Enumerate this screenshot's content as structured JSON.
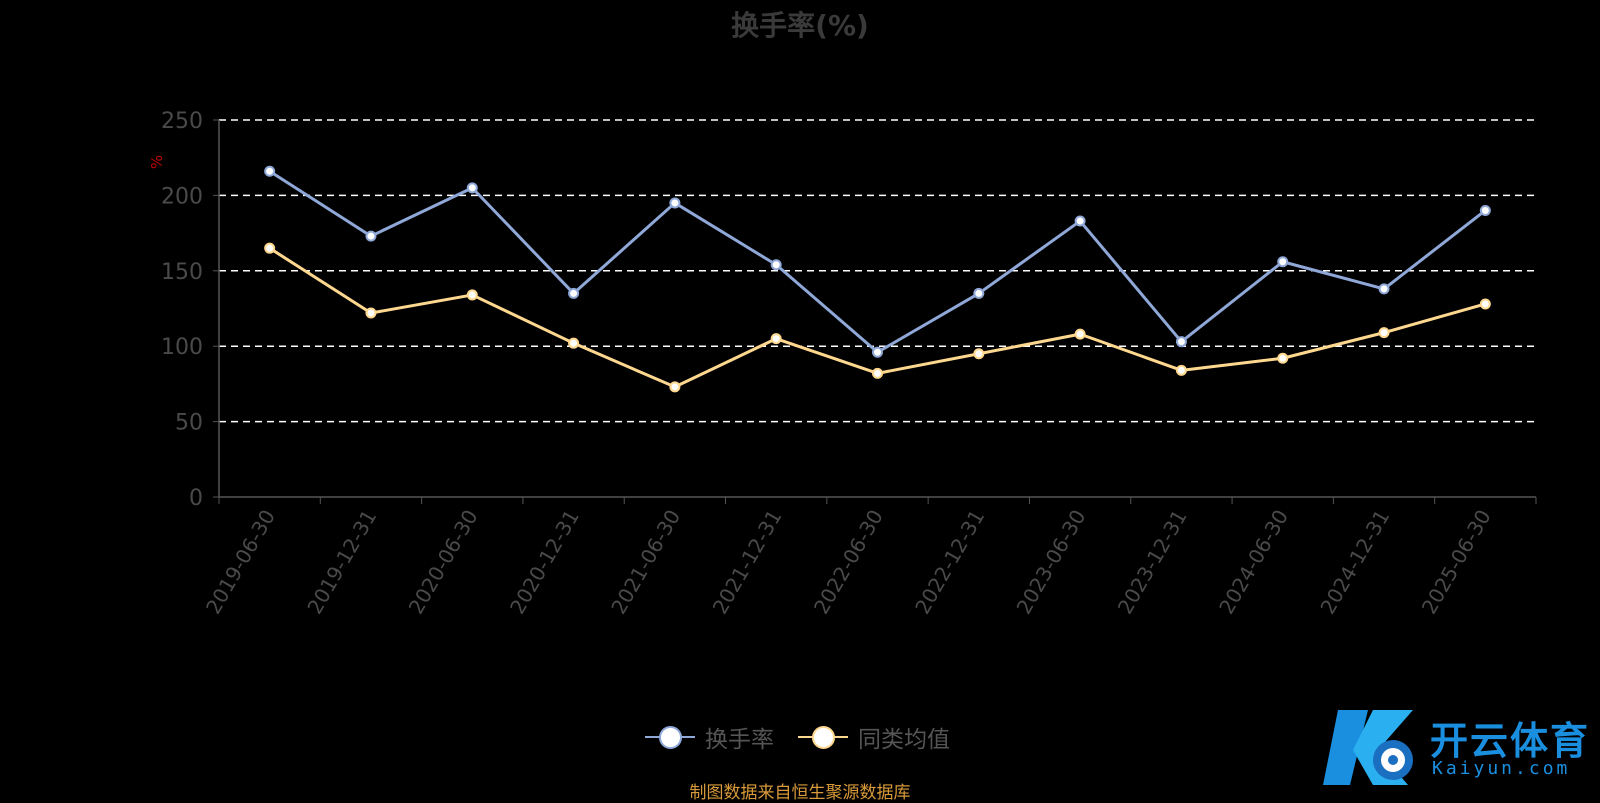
{
  "chart_data": {
    "type": "line",
    "title": "换手率(%)",
    "ylabel": "%",
    "xlabel": "",
    "ylim": [
      0,
      250
    ],
    "yticks": [
      0,
      50,
      100,
      150,
      200,
      250
    ],
    "grid": true,
    "legend_position": "bottom",
    "categories": [
      "2019-06-30",
      "2019-12-31",
      "2020-06-30",
      "2020-12-31",
      "2021-06-30",
      "2021-12-31",
      "2022-06-30",
      "2022-12-31",
      "2023-06-30",
      "2023-12-31",
      "2024-06-30",
      "2024-12-31",
      "2025-06-30"
    ],
    "series": [
      {
        "name": "换手率",
        "color": "#8fa8d8",
        "values": [
          216,
          173,
          205,
          135,
          195,
          154,
          96,
          135,
          183,
          103,
          156,
          138,
          190
        ]
      },
      {
        "name": "同类均值",
        "color": "#ffd890",
        "values": [
          165,
          122,
          134,
          102,
          73,
          105,
          82,
          95,
          108,
          84,
          92,
          109,
          128
        ]
      }
    ]
  },
  "legend": {
    "items": [
      {
        "label": "换手率",
        "color": "#8fa8d8"
      },
      {
        "label": "同类均值",
        "color": "#ffd890"
      }
    ]
  },
  "footer": {
    "source": "制图数据来自恒生聚源数据库"
  },
  "watermark": {
    "brand": "开云体育",
    "domain": "Kaiyun.com"
  }
}
